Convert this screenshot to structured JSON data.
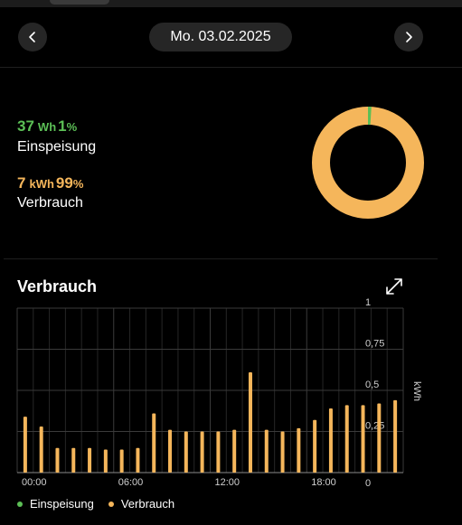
{
  "header": {
    "date": "Mo. 03.02.2025",
    "prev_icon": "chevron-left-icon",
    "next_icon": "chevron-right-icon"
  },
  "summary": {
    "feed_in": {
      "value": "37",
      "unit": "Wh",
      "percent": "1",
      "percent_sign": "%",
      "label": "Einspeisung",
      "color": "#5cbf56"
    },
    "consumption": {
      "value": "7",
      "unit": "kWh",
      "percent": "99",
      "percent_sign": "%",
      "label": "Verbrauch",
      "color": "#f5b65b"
    }
  },
  "donut": {
    "feed_in_fraction": 0.01,
    "consumption_fraction": 0.99
  },
  "chart_section": {
    "title": "Verbrauch",
    "expand_icon": "expand-icon"
  },
  "chart_data": {
    "type": "bar",
    "ylabel": "kWh",
    "ylim": [
      0,
      1
    ],
    "y_ticks": [
      "0",
      "0,25",
      "0,5",
      "0,75",
      "1"
    ],
    "x_tick_labels": [
      "00:00",
      "06:00",
      "12:00",
      "18:00"
    ],
    "series": [
      {
        "name": "Einspeisung",
        "color": "#5cbf56",
        "values": []
      },
      {
        "name": "Verbrauch",
        "color": "#f5b65b",
        "values": [
          0.34,
          0.28,
          0.15,
          0.15,
          0.15,
          0.14,
          0.14,
          0.15,
          0.36,
          0.26,
          0.25,
          0.25,
          0.25,
          0.26,
          0.61,
          0.26,
          0.25,
          0.27,
          0.32,
          0.39,
          0.41,
          0.41,
          0.42,
          0.44
        ]
      }
    ],
    "grid": true,
    "legend": "bottom-left"
  },
  "legend": [
    {
      "label": "Einspeisung",
      "color": "#5cbf56"
    },
    {
      "label": "Verbrauch",
      "color": "#f5b65b"
    }
  ]
}
